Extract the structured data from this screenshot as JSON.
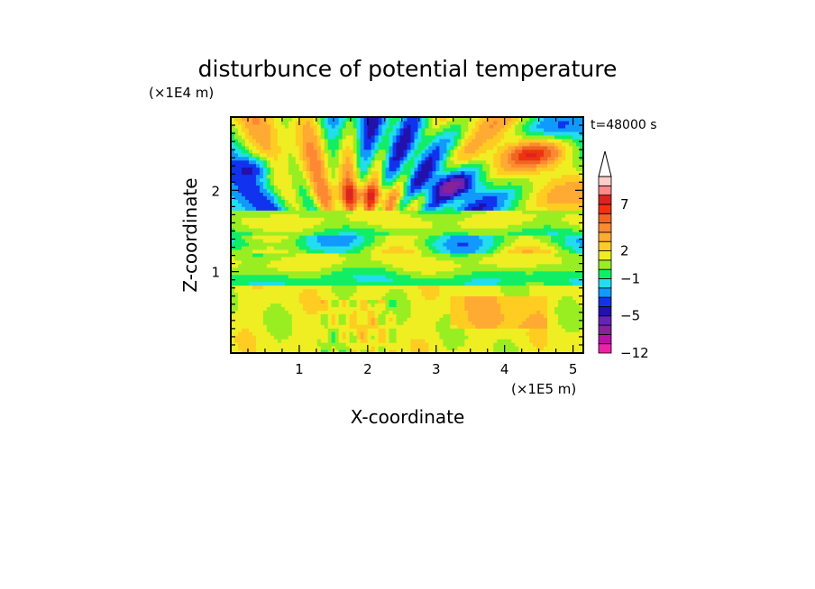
{
  "chart_data": {
    "type": "heatmap",
    "title": "disturbunce of potential temperature",
    "xlabel": "X-coordinate",
    "ylabel": "Z-coordinate",
    "x_unit": "(×1E5 m)",
    "y_unit": "(×1E4 m)",
    "time_label": "t=48000 s",
    "xlim": [
      0,
      5.15
    ],
    "ylim": [
      0,
      2.9
    ],
    "x_ticks": [
      1,
      2,
      3,
      4,
      5
    ],
    "y_ticks": [
      1,
      2
    ],
    "x_tick_labels": [
      "1",
      "2",
      "3",
      "4",
      "5"
    ],
    "y_tick_labels": [
      "1",
      "2"
    ],
    "colorbar": {
      "labels": [
        "7",
        "2",
        "−1",
        "−5",
        "−12"
      ],
      "label_levels": [
        7,
        2,
        -1,
        -5,
        -12
      ],
      "levels": [
        -12,
        -10,
        -8,
        -6,
        -5,
        -4,
        -3,
        -2,
        -1,
        0,
        1,
        2,
        3,
        4,
        5,
        6,
        7,
        8,
        9
      ],
      "colors": [
        "#ee22aa",
        "#bb11aa",
        "#882299",
        "#6622bb",
        "#2211aa",
        "#1133ee",
        "#1199ff",
        "#22ddee",
        "#11ee66",
        "#99ee22",
        "#eeee22",
        "#ffcc22",
        "#ffaa33",
        "#ff8833",
        "#ee6622",
        "#ee3311",
        "#dd2222",
        "#ff8888",
        "#ffcccc"
      ],
      "extend": "max"
    }
  }
}
